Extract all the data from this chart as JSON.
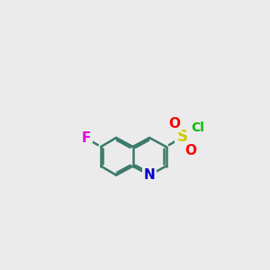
{
  "bg_color": "#ebebeb",
  "bond_color": "#3a7a6a",
  "bond_width": 1.8,
  "dbo": 0.1,
  "atom_colors": {
    "F": "#dd00dd",
    "N": "#0000cc",
    "S": "#cccc00",
    "O": "#ff0000",
    "Cl": "#00bb00"
  },
  "atom_fontsizes": {
    "F": 11,
    "N": 11,
    "S": 12,
    "O": 11,
    "Cl": 10
  },
  "figsize": [
    3.0,
    3.0
  ],
  "dpi": 100
}
